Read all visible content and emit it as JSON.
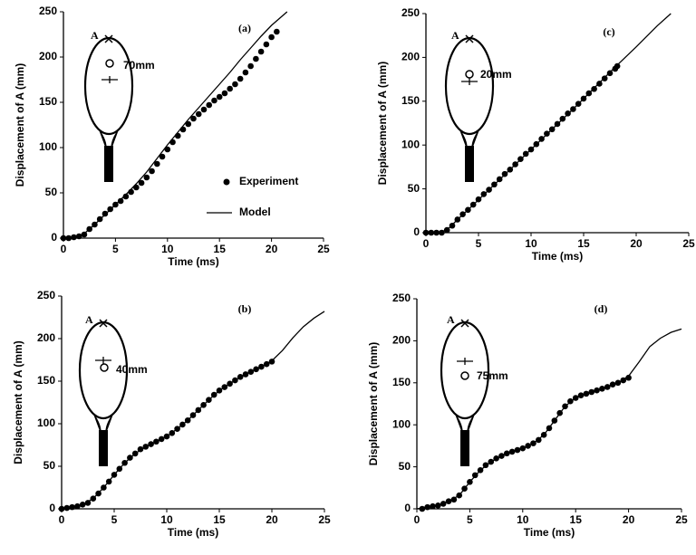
{
  "chart_data": [
    {
      "type": "line",
      "title": "(a)",
      "x_label": "Time (ms)",
      "y_label": "Displacement of A (mm)",
      "xlim": [
        0,
        25
      ],
      "ylim": [
        0,
        250
      ],
      "xticks": [
        0,
        5,
        10,
        15,
        20,
        25
      ],
      "yticks": [
        0,
        50,
        100,
        150,
        200,
        250
      ],
      "annotations": [
        "A",
        "70mm"
      ],
      "series": [
        {
          "name": "Experiment",
          "type": "scatter",
          "color": "#000000",
          "x": [
            0,
            0.5,
            1,
            1.5,
            2,
            2.5,
            3,
            3.5,
            4,
            4.5,
            5,
            5.5,
            6,
            6.5,
            7,
            7.5,
            8,
            8.5,
            9,
            9.5,
            10,
            10.5,
            11,
            11.5,
            12,
            12.5,
            13,
            13.5,
            14,
            14.5,
            15,
            15.5,
            16,
            16.5,
            17,
            17.5,
            18,
            18.5,
            19,
            19.5,
            20,
            20.5
          ],
          "values": [
            0,
            0,
            1,
            2,
            4,
            10,
            15,
            21,
            27,
            32,
            37,
            41,
            46,
            51,
            56,
            61,
            67,
            74,
            82,
            90,
            98,
            106,
            113,
            120,
            126,
            132,
            137,
            142,
            147,
            152,
            156,
            160,
            165,
            170,
            176,
            183,
            190,
            198,
            206,
            214,
            222,
            228
          ]
        },
        {
          "name": "Model",
          "type": "line",
          "color": "#000000",
          "x": [
            0,
            1,
            2,
            3,
            4,
            5,
            6,
            7,
            8,
            9,
            10,
            11,
            12,
            13,
            14,
            15,
            16,
            17,
            18,
            19,
            20,
            21,
            21.5
          ],
          "values": [
            0,
            1,
            5,
            15,
            26,
            37,
            48,
            60,
            73,
            88,
            103,
            117,
            131,
            144,
            157,
            170,
            183,
            197,
            210,
            223,
            235,
            245,
            250
          ]
        }
      ]
    },
    {
      "type": "line",
      "title": "(b)",
      "x_label": "Time (ms)",
      "y_label": "Displacement of A (mm)",
      "xlim": [
        0,
        25
      ],
      "ylim": [
        0,
        250
      ],
      "xticks": [
        0,
        5,
        10,
        15,
        20,
        25
      ],
      "yticks": [
        0,
        50,
        100,
        150,
        200,
        250
      ],
      "annotations": [
        "A",
        "40mm"
      ],
      "series": [
        {
          "type": "scatter",
          "color": "#000000",
          "x": [
            0,
            0.5,
            1,
            1.5,
            2,
            2.5,
            3,
            3.5,
            4,
            4.5,
            5,
            5.5,
            6,
            6.5,
            7,
            7.5,
            8,
            8.5,
            9,
            9.5,
            10,
            10.5,
            11,
            11.5,
            12,
            12.5,
            13,
            13.5,
            14,
            14.5,
            15,
            15.5,
            16,
            16.5,
            17,
            17.5,
            18,
            18.5,
            19,
            19.5,
            20
          ],
          "values": [
            0,
            1,
            2,
            3,
            5,
            7,
            12,
            18,
            25,
            32,
            40,
            47,
            54,
            60,
            65,
            70,
            73,
            76,
            79,
            82,
            85,
            89,
            94,
            99,
            104,
            110,
            116,
            122,
            128,
            134,
            139,
            143,
            147,
            151,
            155,
            158,
            161,
            164,
            167,
            170,
            173
          ]
        },
        {
          "type": "line",
          "color": "#000000",
          "x": [
            0,
            2,
            3,
            4,
            5,
            6,
            7,
            8,
            9,
            10,
            11,
            12,
            13,
            14,
            15,
            16,
            17,
            18,
            19,
            20,
            21,
            22,
            23,
            24,
            25
          ],
          "values": [
            0,
            5,
            12,
            25,
            40,
            54,
            65,
            73,
            79,
            85,
            94,
            104,
            116,
            128,
            139,
            147,
            155,
            161,
            167,
            174,
            186,
            201,
            214,
            224,
            232
          ]
        }
      ]
    },
    {
      "type": "line",
      "title": "(c)",
      "x_label": "Time (ms)",
      "y_label": "Displacement of A (mm)",
      "xlim": [
        0,
        25
      ],
      "ylim": [
        0,
        250
      ],
      "xticks": [
        0,
        5,
        10,
        15,
        20,
        25
      ],
      "yticks": [
        0,
        50,
        100,
        150,
        200,
        250
      ],
      "annotations": [
        "A",
        "20mm"
      ],
      "series": [
        {
          "type": "scatter",
          "color": "#000000",
          "x": [
            0,
            0.5,
            1,
            1.5,
            2,
            2.5,
            3,
            3.5,
            4,
            4.5,
            5,
            5.5,
            6,
            6.5,
            7,
            7.5,
            8,
            8.5,
            9,
            9.5,
            10,
            10.5,
            11,
            11.5,
            12,
            12.5,
            13,
            13.5,
            14,
            14.5,
            15,
            15.5,
            16,
            16.5,
            17,
            17.5,
            18,
            18.2
          ],
          "values": [
            0,
            0,
            0,
            0,
            3,
            8,
            15,
            21,
            26,
            32,
            38,
            44,
            49,
            55,
            61,
            67,
            72,
            78,
            84,
            90,
            95,
            101,
            107,
            113,
            118,
            124,
            130,
            136,
            141,
            147,
            153,
            159,
            164,
            170,
            176,
            182,
            187,
            190
          ]
        },
        {
          "type": "line",
          "color": "#000000",
          "x": [
            0,
            1,
            2,
            3,
            4,
            6,
            8,
            10,
            12,
            14,
            16,
            18,
            20,
            22,
            23.3
          ],
          "values": [
            0,
            0,
            3,
            15,
            26,
            49,
            72,
            95,
            118,
            141,
            165,
            189,
            212,
            236,
            250
          ]
        }
      ]
    },
    {
      "type": "line",
      "title": "(d)",
      "x_label": "Time (ms)",
      "y_label": "Displacement of A (mm)",
      "xlim": [
        0,
        25
      ],
      "ylim": [
        0,
        250
      ],
      "xticks": [
        0,
        5,
        10,
        15,
        20,
        25
      ],
      "yticks": [
        0,
        50,
        100,
        150,
        200,
        250
      ],
      "annotations": [
        "A",
        "75mm"
      ],
      "series": [
        {
          "type": "scatter",
          "color": "#000000",
          "x": [
            0.5,
            1,
            1.5,
            2,
            2.5,
            3,
            3.5,
            4,
            4.5,
            5,
            5.5,
            6,
            6.5,
            7,
            7.5,
            8,
            8.5,
            9,
            9.5,
            10,
            10.5,
            11,
            11.5,
            12,
            12.5,
            13,
            13.5,
            14,
            14.5,
            15,
            15.5,
            16,
            16.5,
            17,
            17.5,
            18,
            18.5,
            19,
            19.5,
            20
          ],
          "values": [
            0,
            2,
            3,
            4,
            6,
            9,
            11,
            16,
            24,
            32,
            40,
            46,
            52,
            56,
            60,
            63,
            66,
            68,
            70,
            72,
            75,
            78,
            82,
            88,
            96,
            105,
            114,
            122,
            128,
            132,
            135,
            137,
            139,
            141,
            143,
            145,
            148,
            150,
            153,
            156
          ]
        },
        {
          "type": "line",
          "color": "#000000",
          "x": [
            0,
            2,
            3,
            4,
            5,
            6,
            7,
            8,
            9,
            10,
            11,
            12,
            13,
            14,
            15,
            16,
            17,
            18,
            19,
            20,
            21,
            22,
            23,
            24,
            25
          ],
          "values": [
            0,
            4,
            9,
            16,
            32,
            46,
            56,
            63,
            68,
            72,
            78,
            88,
            105,
            122,
            132,
            137,
            141,
            145,
            150,
            158,
            175,
            193,
            203,
            210,
            214
          ]
        }
      ]
    }
  ]
}
